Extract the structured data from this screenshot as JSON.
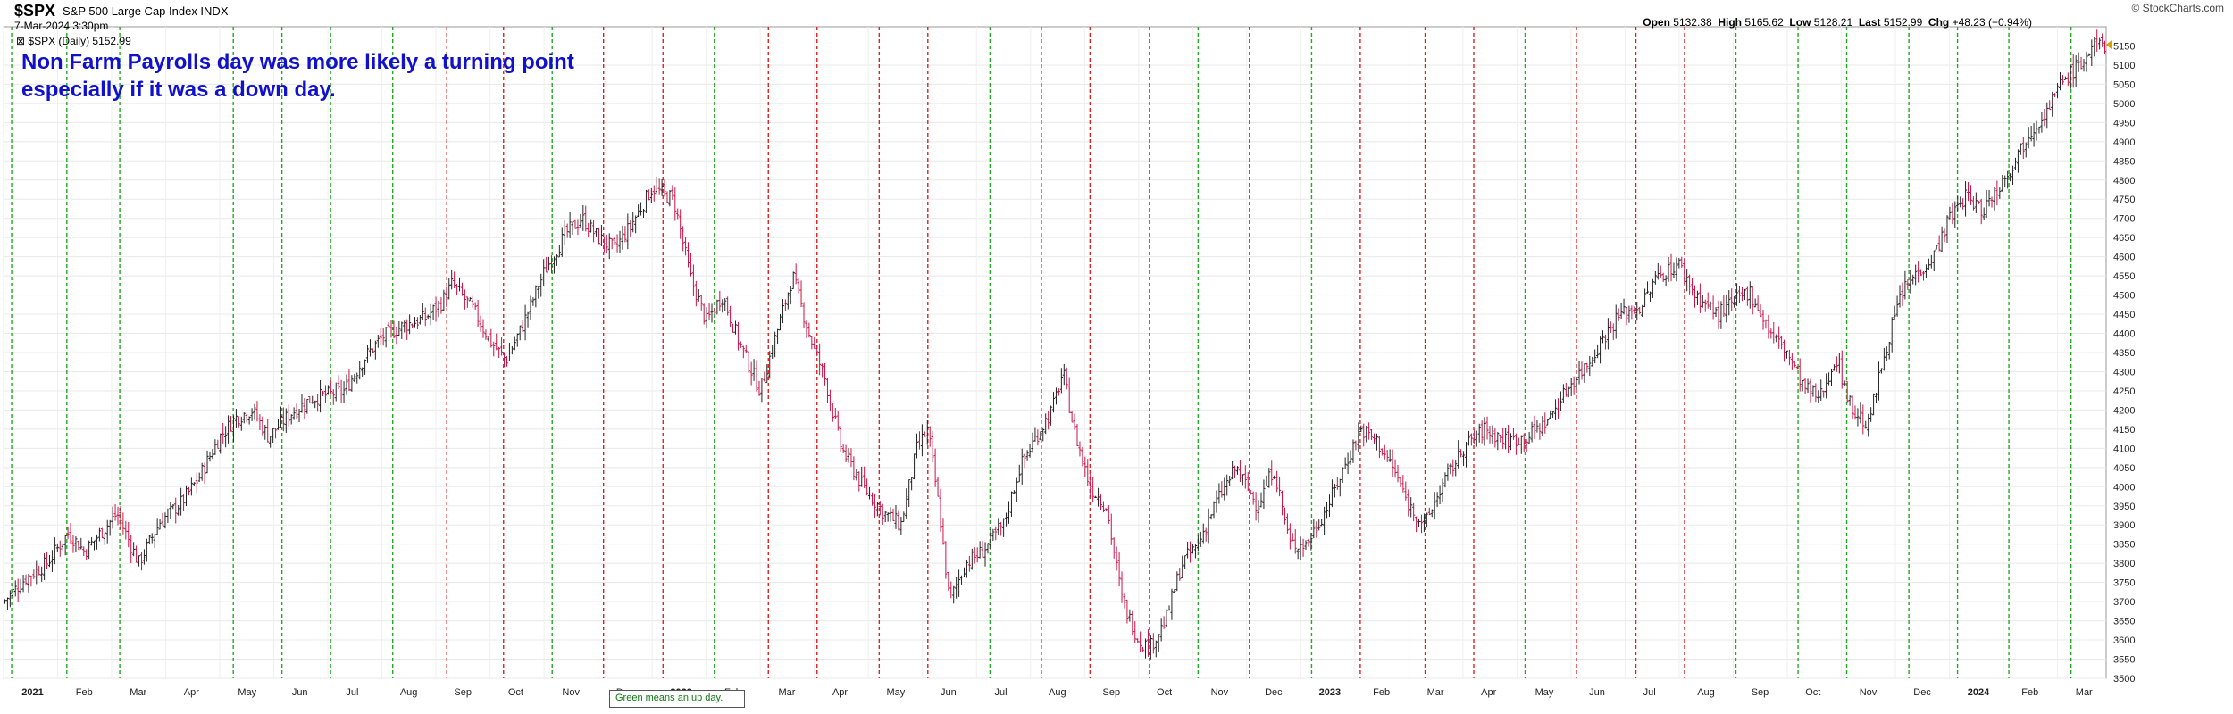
{
  "header": {
    "symbol": "$SPX",
    "description": "S&P 500 Large Cap Index  INDX",
    "datetime": "7-Mar-2024 3:30pm",
    "series_label": "$SPX (Daily) 5152.99",
    "credit": "© StockCharts.com",
    "open_label": "Open",
    "open": "5132.38",
    "high_label": "High",
    "high": "5165.62",
    "low_label": "Low",
    "low": "5128.21",
    "last_label": "Last",
    "last": "5152.99",
    "chg_label": "Chg",
    "chg": "+48.23 (+0.94%)"
  },
  "annotation": {
    "line1": "Non Farm Payrolls day was more likely a turning point",
    "line2": "especially if it was a down day."
  },
  "legend_note": "Green means an up day.",
  "colors": {
    "up_line": "#22aa22",
    "down_line": "#dd2222",
    "up_bar": "#222222",
    "down_bar": "#cc1144",
    "annotation": "#1111cc"
  },
  "chart_data": {
    "type": "ohlc",
    "title": "$SPX S&P 500 Large Cap Index",
    "ylim": [
      3500,
      5200
    ],
    "y_ticks": [
      3500,
      3550,
      3600,
      3650,
      3700,
      3750,
      3800,
      3850,
      3900,
      3950,
      4000,
      4050,
      4100,
      4150,
      4200,
      4250,
      4300,
      4350,
      4400,
      4450,
      4500,
      4550,
      4600,
      4650,
      4700,
      4750,
      4800,
      4850,
      4900,
      4950,
      5000,
      5050,
      5100,
      5150
    ],
    "x_labels": [
      {
        "t": 0.5,
        "label": "2021",
        "bold": true
      },
      {
        "t": 1.5,
        "label": "Feb"
      },
      {
        "t": 2.5,
        "label": "Mar"
      },
      {
        "t": 3.5,
        "label": "Apr"
      },
      {
        "t": 4.5,
        "label": "May"
      },
      {
        "t": 5.5,
        "label": "Jun"
      },
      {
        "t": 6.5,
        "label": "Jul"
      },
      {
        "t": 7.5,
        "label": "Aug"
      },
      {
        "t": 8.5,
        "label": "Sep"
      },
      {
        "t": 9.5,
        "label": "Oct"
      },
      {
        "t": 10.5,
        "label": "Nov"
      },
      {
        "t": 11.5,
        "label": "Dec"
      },
      {
        "t": 12.5,
        "label": "2022",
        "bold": true
      },
      {
        "t": 13.5,
        "label": "Feb"
      },
      {
        "t": 14.5,
        "label": "Mar"
      },
      {
        "t": 15.5,
        "label": "Apr"
      },
      {
        "t": 16.5,
        "label": "May"
      },
      {
        "t": 17.5,
        "label": "Jun"
      },
      {
        "t": 18.5,
        "label": "Jul"
      },
      {
        "t": 19.5,
        "label": "Aug"
      },
      {
        "t": 20.5,
        "label": "Sep"
      },
      {
        "t": 21.5,
        "label": "Oct"
      },
      {
        "t": 22.5,
        "label": "Nov"
      },
      {
        "t": 23.5,
        "label": "Dec"
      },
      {
        "t": 24.5,
        "label": "2023",
        "bold": true
      },
      {
        "t": 25.5,
        "label": "Feb"
      },
      {
        "t": 26.5,
        "label": "Mar"
      },
      {
        "t": 27.5,
        "label": "Apr"
      },
      {
        "t": 28.5,
        "label": "May"
      },
      {
        "t": 29.5,
        "label": "Jun"
      },
      {
        "t": 30.5,
        "label": "Jul"
      },
      {
        "t": 31.5,
        "label": "Aug"
      },
      {
        "t": 32.5,
        "label": "Sep"
      },
      {
        "t": 33.5,
        "label": "Oct"
      },
      {
        "t": 34.5,
        "label": "Nov"
      },
      {
        "t": 35.5,
        "label": "Dec"
      },
      {
        "t": 36.5,
        "label": "2024",
        "bold": true
      },
      {
        "t": 37.5,
        "label": "Feb"
      },
      {
        "t": 38.5,
        "label": "Mar"
      }
    ],
    "nfp_days": [
      {
        "t": 0.15,
        "type": "up"
      },
      {
        "t": 1.17,
        "type": "up"
      },
      {
        "t": 2.15,
        "type": "up"
      },
      {
        "t": 4.25,
        "type": "up"
      },
      {
        "t": 5.15,
        "type": "up"
      },
      {
        "t": 6.05,
        "type": "up"
      },
      {
        "t": 7.2,
        "type": "up"
      },
      {
        "t": 8.2,
        "type": "down"
      },
      {
        "t": 9.25,
        "type": "down"
      },
      {
        "t": 10.15,
        "type": "up"
      },
      {
        "t": 11.1,
        "type": "down"
      },
      {
        "t": 12.2,
        "type": "down"
      },
      {
        "t": 13.15,
        "type": "up"
      },
      {
        "t": 14.15,
        "type": "down"
      },
      {
        "t": 15.05,
        "type": "down"
      },
      {
        "t": 16.2,
        "type": "down"
      },
      {
        "t": 17.1,
        "type": "down"
      },
      {
        "t": 18.25,
        "type": "up"
      },
      {
        "t": 19.2,
        "type": "down"
      },
      {
        "t": 20.1,
        "type": "down"
      },
      {
        "t": 21.2,
        "type": "down"
      },
      {
        "t": 22.1,
        "type": "up"
      },
      {
        "t": 23.05,
        "type": "down"
      },
      {
        "t": 24.2,
        "type": "up"
      },
      {
        "t": 25.1,
        "type": "down"
      },
      {
        "t": 26.3,
        "type": "down"
      },
      {
        "t": 27.2,
        "type": "down"
      },
      {
        "t": 28.15,
        "type": "up"
      },
      {
        "t": 29.1,
        "type": "down"
      },
      {
        "t": 30.2,
        "type": "down"
      },
      {
        "t": 31.1,
        "type": "down"
      },
      {
        "t": 32.05,
        "type": "up"
      },
      {
        "t": 33.2,
        "type": "up"
      },
      {
        "t": 34.1,
        "type": "up"
      },
      {
        "t": 35.25,
        "type": "up"
      },
      {
        "t": 36.15,
        "type": "up"
      },
      {
        "t": 37.1,
        "type": "up"
      },
      {
        "t": 38.25,
        "type": "up"
      }
    ],
    "price_path": [
      [
        0.0,
        3700
      ],
      [
        0.4,
        3760
      ],
      [
        0.8,
        3800
      ],
      [
        1.2,
        3880
      ],
      [
        1.5,
        3830
      ],
      [
        1.8,
        3880
      ],
      [
        2.1,
        3930
      ],
      [
        2.5,
        3800
      ],
      [
        2.9,
        3910
      ],
      [
        3.3,
        3960
      ],
      [
        3.6,
        4020
      ],
      [
        4.0,
        4130
      ],
      [
        4.3,
        4180
      ],
      [
        4.6,
        4200
      ],
      [
        4.9,
        4130
      ],
      [
        5.3,
        4190
      ],
      [
        5.7,
        4230
      ],
      [
        6.0,
        4240
      ],
      [
        6.3,
        4250
      ],
      [
        6.7,
        4340
      ],
      [
        7.0,
        4390
      ],
      [
        7.4,
        4420
      ],
      [
        7.8,
        4440
      ],
      [
        8.1,
        4480
      ],
      [
        8.3,
        4530
      ],
      [
        8.7,
        4460
      ],
      [
        9.0,
        4380
      ],
      [
        9.3,
        4330
      ],
      [
        9.6,
        4420
      ],
      [
        10.0,
        4560
      ],
      [
        10.4,
        4660
      ],
      [
        10.7,
        4700
      ],
      [
        11.0,
        4650
      ],
      [
        11.3,
        4620
      ],
      [
        11.6,
        4680
      ],
      [
        12.0,
        4780
      ],
      [
        12.4,
        4750
      ],
      [
        12.7,
        4550
      ],
      [
        13.0,
        4430
      ],
      [
        13.3,
        4500
      ],
      [
        13.6,
        4380
      ],
      [
        14.0,
        4250
      ],
      [
        14.3,
        4400
      ],
      [
        14.6,
        4550
      ],
      [
        14.9,
        4400
      ],
      [
        15.2,
        4280
      ],
      [
        15.5,
        4100
      ],
      [
        15.9,
        4000
      ],
      [
        16.3,
        3930
      ],
      [
        16.6,
        3900
      ],
      [
        16.9,
        4100
      ],
      [
        17.1,
        4150
      ],
      [
        17.3,
        3950
      ],
      [
        17.5,
        3700
      ],
      [
        17.8,
        3800
      ],
      [
        18.1,
        3830
      ],
      [
        18.5,
        3900
      ],
      [
        18.8,
        4050
      ],
      [
        19.1,
        4130
      ],
      [
        19.4,
        4200
      ],
      [
        19.6,
        4300
      ],
      [
        19.8,
        4150
      ],
      [
        20.1,
        4000
      ],
      [
        20.4,
        3950
      ],
      [
        20.7,
        3700
      ],
      [
        21.0,
        3600
      ],
      [
        21.2,
        3580
      ],
      [
        21.5,
        3650
      ],
      [
        21.8,
        3800
      ],
      [
        22.1,
        3850
      ],
      [
        22.4,
        3950
      ],
      [
        22.8,
        4050
      ],
      [
        23.2,
        3950
      ],
      [
        23.5,
        4050
      ],
      [
        23.8,
        3850
      ],
      [
        24.1,
        3850
      ],
      [
        24.5,
        3950
      ],
      [
        24.8,
        4050
      ],
      [
        25.1,
        4150
      ],
      [
        25.4,
        4120
      ],
      [
        25.7,
        4050
      ],
      [
        26.0,
        3950
      ],
      [
        26.3,
        3900
      ],
      [
        26.6,
        4000
      ],
      [
        27.0,
        4100
      ],
      [
        27.4,
        4150
      ],
      [
        27.8,
        4120
      ],
      [
        28.2,
        4130
      ],
      [
        28.6,
        4180
      ],
      [
        29.0,
        4270
      ],
      [
        29.3,
        4320
      ],
      [
        29.6,
        4390
      ],
      [
        29.9,
        4450
      ],
      [
        30.3,
        4470
      ],
      [
        30.6,
        4550
      ],
      [
        31.0,
        4580
      ],
      [
        31.3,
        4500
      ],
      [
        31.7,
        4450
      ],
      [
        32.0,
        4480
      ],
      [
        32.3,
        4510
      ],
      [
        32.7,
        4400
      ],
      [
        33.0,
        4350
      ],
      [
        33.3,
        4260
      ],
      [
        33.6,
        4230
      ],
      [
        33.9,
        4340
      ],
      [
        34.2,
        4200
      ],
      [
        34.5,
        4160
      ],
      [
        34.8,
        4350
      ],
      [
        35.1,
        4500
      ],
      [
        35.4,
        4560
      ],
      [
        35.7,
        4600
      ],
      [
        36.0,
        4700
      ],
      [
        36.3,
        4760
      ],
      [
        36.6,
        4720
      ],
      [
        36.9,
        4780
      ],
      [
        37.2,
        4850
      ],
      [
        37.5,
        4930
      ],
      [
        37.8,
        4980
      ],
      [
        38.1,
        5060
      ],
      [
        38.4,
        5100
      ],
      [
        38.7,
        5150
      ]
    ]
  }
}
